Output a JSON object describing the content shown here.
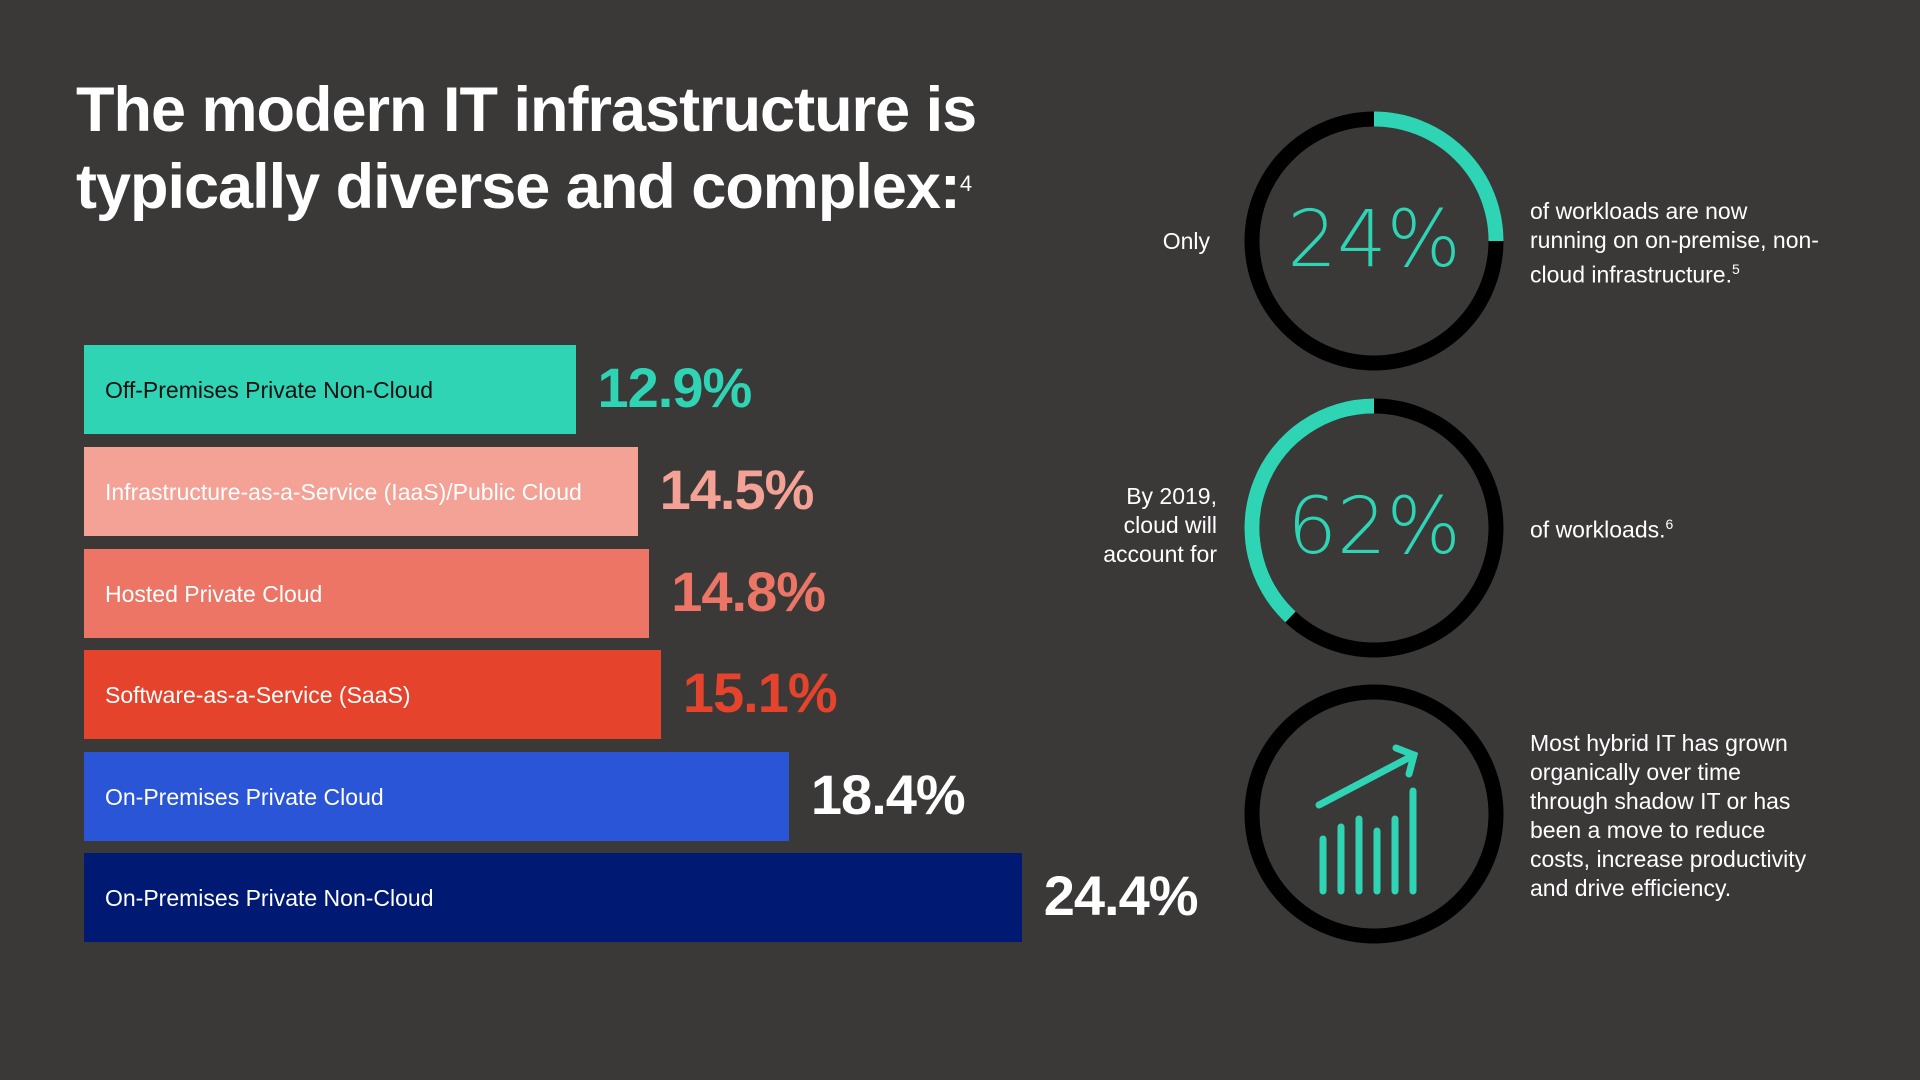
{
  "title": {
    "line1": "The modern IT infrastructure is",
    "line2": "typically diverse and complex:",
    "footnote": "4"
  },
  "chart_data": {
    "type": "bar",
    "orientation": "horizontal",
    "title": "The modern IT infrastructure is typically diverse and complex:",
    "categories": [
      "Off-Premises Private Non-Cloud",
      "Infrastructure-as-a-Service (IaaS)/Public Cloud",
      "Hosted Private Cloud",
      "Software-as-a-Service (SaaS)",
      "On-Premises Private Cloud",
      "On-Premises Private Non-Cloud"
    ],
    "values": [
      12.9,
      14.5,
      14.8,
      15.1,
      18.4,
      24.4
    ],
    "value_labels": [
      "12.9%",
      "14.5%",
      "14.8%",
      "15.1%",
      "18.4%",
      "24.4%"
    ],
    "unit": "%",
    "colors": [
      "#2fd4b4",
      "#f4a196",
      "#ec7565",
      "#e5432b",
      "#2a55d6",
      "#001a73"
    ],
    "label_text_colors": [
      "#111111",
      "#ffffff",
      "#ffffff",
      "#ffffff",
      "#ffffff",
      "#ffffff"
    ],
    "value_colors": [
      "#2fd4b4",
      "#f4a196",
      "#ec7565",
      "#e5432b",
      "#ffffff",
      "#ffffff"
    ],
    "xlabel": "",
    "ylabel": "",
    "grid": false,
    "legend": "none"
  },
  "stats": [
    {
      "prefix": "Only",
      "value": "24%",
      "fraction": 0.25,
      "direction": "clockwise",
      "text": "of workloads are now running on on-premise, non-cloud infrastructure.",
      "footnote": "5"
    },
    {
      "prefix_lines": [
        "By 2019,",
        "cloud will",
        "account for"
      ],
      "value": "62%",
      "fraction": 0.38,
      "direction": "counterclockwise",
      "text": "of workloads.",
      "footnote": "6"
    },
    {
      "icon": "growth-chart-icon",
      "text_lines": [
        "Most hybrid IT has grown",
        "organically over time",
        "through shadow IT or has",
        "been a move to reduce",
        "costs, increase productivity",
        "and drive efficiency."
      ]
    }
  ],
  "colors": {
    "background": "#3b3838",
    "accent": "#2fd4b4",
    "ring": "#000000"
  }
}
